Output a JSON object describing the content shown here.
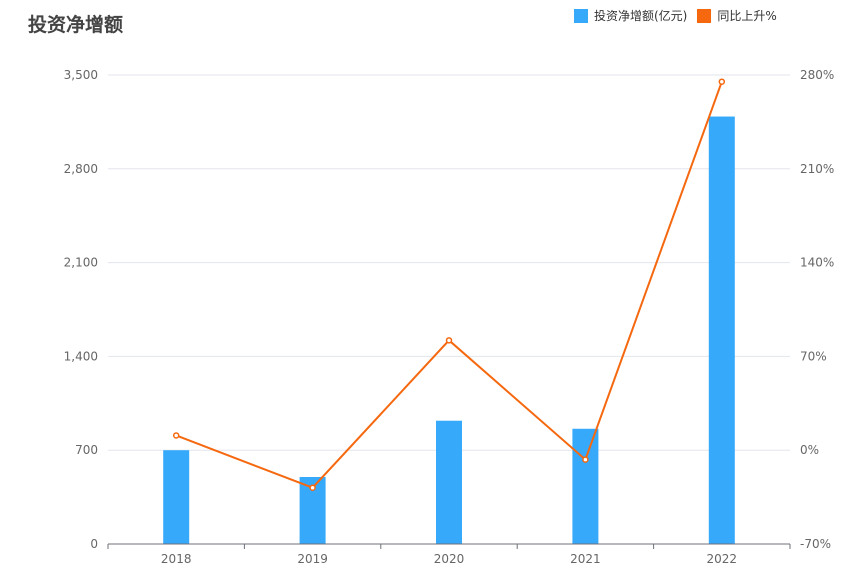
{
  "chart_data": {
    "type": "bar",
    "title": "投资净增额",
    "categories": [
      "2018",
      "2019",
      "2020",
      "2021",
      "2022"
    ],
    "series": [
      {
        "name": "投资净增额(亿元)",
        "type": "bar",
        "axis": "left",
        "color": "#36a9fb",
        "values": [
          700,
          500,
          920,
          860,
          3190
        ]
      },
      {
        "name": "同比上升%",
        "type": "line",
        "axis": "right",
        "color": "#f5680f",
        "values": [
          11,
          -28,
          82,
          -7,
          275
        ]
      }
    ],
    "y_left": {
      "min": 0,
      "max": 3500,
      "ticks": [
        "0",
        "700",
        "1,400",
        "2,100",
        "2,800",
        "3,500"
      ]
    },
    "y_right": {
      "min": -70,
      "max": 280,
      "ticks": [
        "-70%",
        "0%",
        "70%",
        "140%",
        "210%",
        "280%"
      ]
    },
    "grid": true,
    "legend_position": "top-right"
  }
}
